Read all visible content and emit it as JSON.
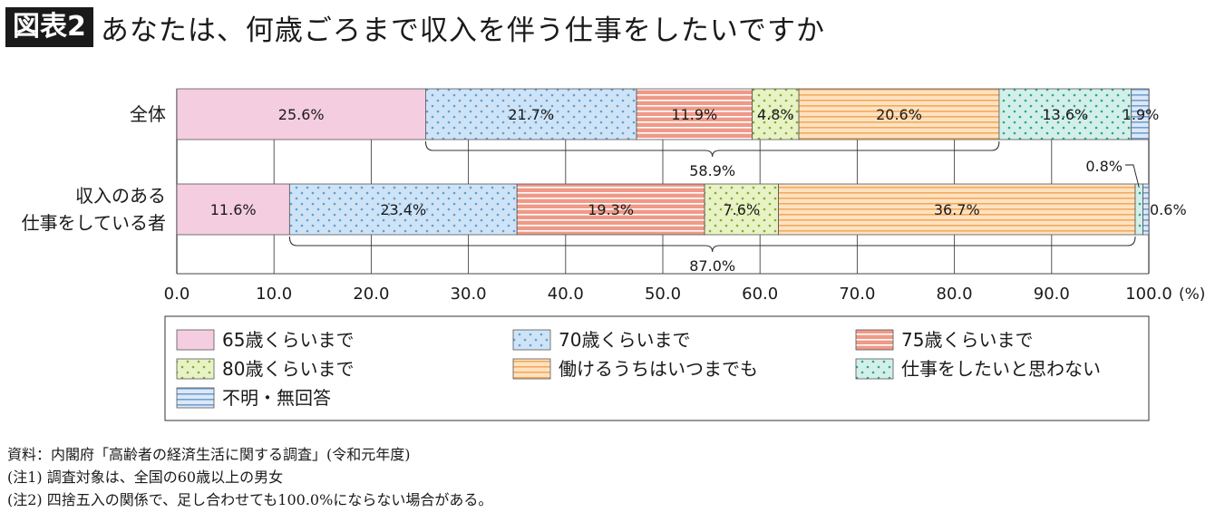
{
  "header": {
    "badge": "図表2",
    "title": "あなたは、何歳ごろまで収入を伴う仕事をしたいですか"
  },
  "chart_data": {
    "type": "bar",
    "orientation": "horizontal",
    "stacked": true,
    "percent": true,
    "categories": [
      "全体",
      "収入のある\n仕事をしている者"
    ],
    "series": [
      {
        "name": "65歳くらいまで",
        "values": [
          25.6,
          11.6
        ],
        "labels": [
          "25.6%",
          "11.6%"
        ],
        "color": "#f5cde0",
        "pattern": "solid"
      },
      {
        "name": "70歳くらいまで",
        "values": [
          21.7,
          23.4
        ],
        "labels": [
          "21.7%",
          "23.4%"
        ],
        "color": "#cfe3f6",
        "pattern": "dots",
        "pattern_color": "#5aa0d8"
      },
      {
        "name": "75歳くらいまで",
        "values": [
          11.9,
          19.3
        ],
        "labels": [
          "11.9%",
          "19.3%"
        ],
        "color": "#ef9a88",
        "pattern": "hlines",
        "pattern_color": "#ffffff"
      },
      {
        "name": "80歳くらいまで",
        "values": [
          4.8,
          7.6
        ],
        "labels": [
          "4.8%",
          "7.6%"
        ],
        "color": "#e8f2c4",
        "pattern": "dots",
        "pattern_color": "#7bb030"
      },
      {
        "name": "働けるうちはいつまでも",
        "values": [
          20.6,
          36.7
        ],
        "labels": [
          "20.6%",
          "36.7%"
        ],
        "color": "#fde2c2",
        "pattern": "hlines",
        "pattern_color": "#f4a95a"
      },
      {
        "name": "仕事をしたいと思わない",
        "values": [
          13.6,
          0.8
        ],
        "labels": [
          "13.6%",
          "0.8%"
        ],
        "color": "#d3efe9",
        "pattern": "dots",
        "pattern_color": "#2aa58a"
      },
      {
        "name": "不明・無回答",
        "values": [
          1.9,
          0.6
        ],
        "labels": [
          "1.9%",
          "0.6%"
        ],
        "color": "#dce8f6",
        "pattern": "hlines",
        "pattern_color": "#6f9fd6"
      }
    ],
    "brackets": [
      {
        "category_index": 0,
        "from": 25.6,
        "to": 84.6,
        "label": "58.9%"
      },
      {
        "category_index": 1,
        "from": 11.6,
        "to": 98.6,
        "label": "87.0%"
      }
    ],
    "xlim": [
      0,
      100
    ],
    "xticks": [
      "0.0",
      "10.0",
      "20.0",
      "30.0",
      "40.0",
      "50.0",
      "60.0",
      "70.0",
      "80.0",
      "90.0",
      "100.0"
    ],
    "xunit": "(%)",
    "grid": true,
    "legend_position": "bottom"
  },
  "notes": [
    "資料：内閣府「高齢者の経済生活に関する調査」(令和元年度)",
    "(注1) 調査対象は、全国の60歳以上の男女",
    "(注2) 四捨五入の関係で、足し合わせても100.0%にならない場合がある。"
  ]
}
